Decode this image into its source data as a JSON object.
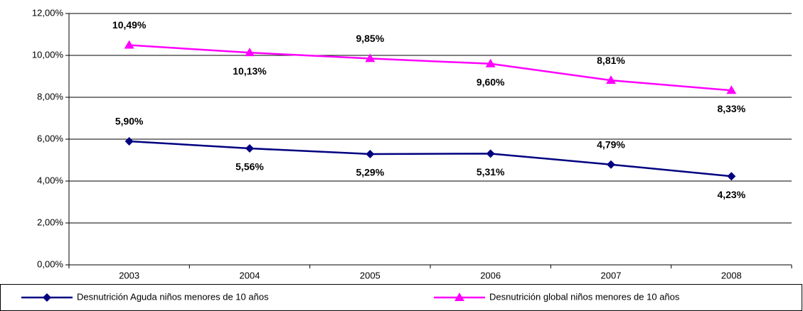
{
  "chart_data": {
    "type": "line",
    "categories": [
      "2003",
      "2004",
      "2005",
      "2006",
      "2007",
      "2008"
    ],
    "series": [
      {
        "name": "Desnutrición Aguda niños menores de 10 años",
        "color": "#000080",
        "marker": "diamond",
        "values": [
          5.9,
          5.56,
          5.29,
          5.31,
          4.79,
          4.23
        ],
        "value_labels": [
          "5,90%",
          "5,56%",
          "5,29%",
          "5,31%",
          "4,79%",
          "4,23%"
        ]
      },
      {
        "name": "Desnutrición global niños menores de 10 años",
        "color": "#ff00ff",
        "marker": "triangle",
        "values": [
          10.49,
          10.13,
          9.85,
          9.6,
          8.81,
          8.33
        ],
        "value_labels": [
          "10,49%",
          "10,13%",
          "9,85%",
          "9,60%",
          "8,81%",
          "8,33%"
        ]
      }
    ],
    "ylim": [
      0,
      12
    ],
    "yticks": [
      {
        "value": 0,
        "label": "0,00%"
      },
      {
        "value": 2,
        "label": "2,00%"
      },
      {
        "value": 4,
        "label": "4,00%"
      },
      {
        "value": 6,
        "label": "6,00%"
      },
      {
        "value": 8,
        "label": "8,00%"
      },
      {
        "value": 10,
        "label": "10,00%"
      },
      {
        "value": 12,
        "label": "12,00%"
      }
    ],
    "grid": true,
    "legend": "bottom"
  }
}
